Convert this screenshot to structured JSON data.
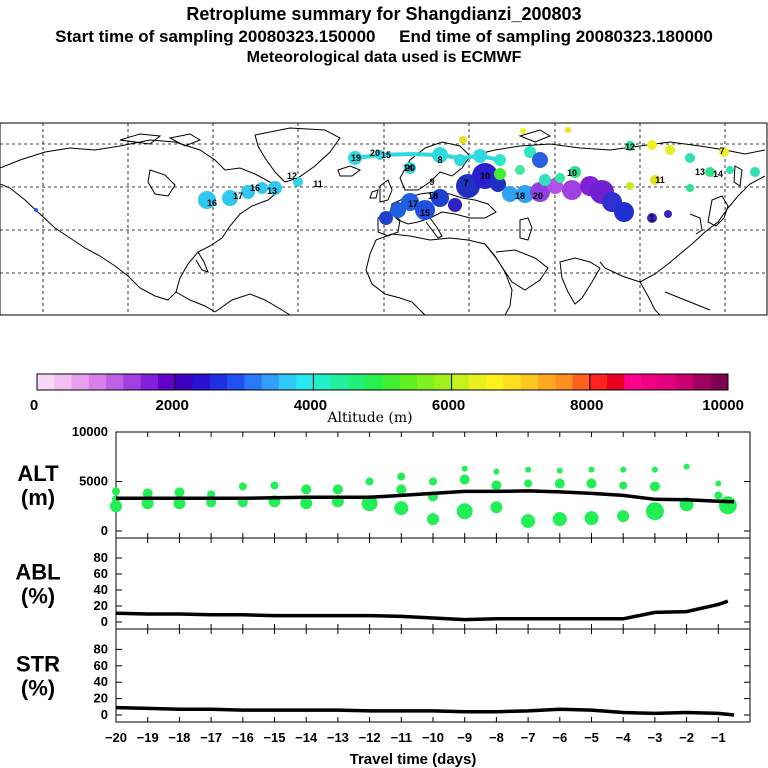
{
  "header": {
    "line1": "Retroplume summary for Shangdianzi_200803",
    "line2": "Start time of sampling 20080323.150000     End time of sampling 20080323.180000",
    "line3": "Meteorological data used is ECMWF"
  },
  "colors": {
    "alt_dots": "#22ee55",
    "line": "#000000",
    "colorbar": [
      "#f7d9f7",
      "#f0c0f0",
      "#e6a0ee",
      "#d880ea",
      "#c060e6",
      "#a040e0",
      "#8020d8",
      "#6000c8",
      "#4000c0",
      "#2a10d0",
      "#2030e0",
      "#2050f0",
      "#2878f8",
      "#30a0f8",
      "#30c8f8",
      "#28e8f0",
      "#20f0c8",
      "#20f0a0",
      "#20f078",
      "#28f050",
      "#40f030",
      "#60f020",
      "#80f020",
      "#a0f020",
      "#c8f020",
      "#e8f020",
      "#fff020",
      "#ffe020",
      "#ffc820",
      "#ffa820",
      "#ff9020",
      "#ff6020",
      "#ff2020",
      "#e80020",
      "#ff0090",
      "#f00080",
      "#e00080",
      "#c80070",
      "#a00060",
      "#800050"
    ]
  },
  "colorbar": {
    "ticks": [
      "0",
      "2000",
      "4000",
      "6000",
      "8000",
      "10000"
    ],
    "label": "Altitude (m)"
  },
  "map": {
    "label_values": [
      {
        "text": "16",
        "color": "#28c8f0"
      },
      {
        "text": "17",
        "color": "#28c8f0"
      },
      {
        "text": "16",
        "color": "#28c8f0"
      },
      {
        "text": "13",
        "color": "#28d8e0"
      },
      {
        "text": "12",
        "color": "#28e0d0"
      },
      {
        "text": "11",
        "color": "#28e0d0"
      },
      {
        "text": "19",
        "color": "#28d8e0"
      },
      {
        "text": "20",
        "color": "#28d8e0"
      },
      {
        "text": "14",
        "color": "#28d8e0"
      },
      {
        "text": "18",
        "color": "#2890f0"
      },
      {
        "text": "17",
        "color": "#2060e0"
      },
      {
        "text": "15",
        "color": "#2060e0"
      },
      {
        "text": "10",
        "color": "#30e090"
      },
      {
        "text": "18",
        "color": "#30a0f0"
      },
      {
        "text": "20",
        "color": "#9040e0"
      },
      {
        "text": "9",
        "color": "#c0e030"
      },
      {
        "text": "7",
        "color": "#f0f020"
      },
      {
        "text": "8",
        "color": "#f0e020"
      },
      {
        "text": "11",
        "color": "#e0e020"
      },
      {
        "text": "12",
        "color": "#30e090"
      },
      {
        "text": "7",
        "color": "#f0f020"
      },
      {
        "text": "20",
        "color": "#30e0b0"
      },
      {
        "text": "10",
        "color": "#30e090"
      },
      {
        "text": "13",
        "color": "#30e090"
      },
      {
        "text": "14",
        "color": "#30e090"
      },
      {
        "text": "15",
        "color": "#30e0b0"
      },
      {
        "text": "1",
        "color": "#4020c0"
      }
    ]
  },
  "chart_data": [
    {
      "type": "scatter",
      "name": "ALT",
      "ylabel": "ALT\n(m)",
      "ylabel_lines": [
        "ALT",
        "(m)"
      ],
      "xlim": [
        -20,
        0
      ],
      "ylim": [
        0,
        10000
      ],
      "yticks": [
        "10000",
        "5000",
        "0"
      ],
      "ytick_values": [
        10000,
        5000,
        0
      ],
      "line": {
        "x": [
          -20,
          -19,
          -18,
          -17,
          -16,
          -15,
          -14,
          -13,
          -12,
          -11,
          -10,
          -9,
          -8,
          -7,
          -6,
          -5,
          -4,
          -3,
          -2,
          -1,
          -0.5
        ],
        "y": [
          3300,
          3300,
          3300,
          3300,
          3300,
          3350,
          3400,
          3400,
          3400,
          3600,
          3800,
          4000,
          4000,
          4050,
          3950,
          3800,
          3600,
          3200,
          3150,
          3000,
          2950
        ]
      },
      "dots": {
        "x": [
          -20,
          -20,
          -20,
          -19,
          -19,
          -18,
          -18,
          -17,
          -17,
          -16,
          -16,
          -15,
          -15,
          -14,
          -14,
          -13,
          -13,
          -12,
          -12,
          -11,
          -11,
          -11,
          -10,
          -10,
          -10,
          -9,
          -9,
          -9,
          -8,
          -8,
          -8,
          -7,
          -7,
          -7,
          -6,
          -6,
          -6,
          -5,
          -5,
          -5,
          -4,
          -4,
          -4,
          -3,
          -3,
          -3,
          -2,
          -2,
          -1,
          -1,
          -0.7
        ],
        "y": [
          4000,
          3200,
          2500,
          3800,
          2800,
          3900,
          2800,
          3700,
          2900,
          4500,
          2900,
          4600,
          3000,
          4200,
          2800,
          4200,
          3000,
          5000,
          2800,
          5500,
          4200,
          2300,
          5000,
          3500,
          1200,
          6300,
          5200,
          2000,
          6000,
          4600,
          2400,
          6200,
          4800,
          1000,
          6100,
          4800,
          1200,
          6200,
          4800,
          1300,
          6200,
          4600,
          1500,
          6200,
          4500,
          2000,
          6500,
          2700,
          4800,
          3600,
          2600
        ],
        "size": [
          4,
          4,
          6,
          5,
          6,
          5,
          6,
          4,
          5,
          4,
          5,
          4,
          6,
          5,
          6,
          5,
          6,
          4,
          8,
          4,
          5,
          7,
          4,
          5,
          6,
          3,
          5,
          8,
          3,
          5,
          6,
          3,
          4,
          7,
          3,
          5,
          7,
          3,
          5,
          7,
          3,
          4,
          6,
          3,
          5,
          9,
          3,
          7,
          3,
          4,
          9
        ]
      }
    },
    {
      "type": "line",
      "name": "ABL",
      "ylabel": "ABL\n(%)",
      "ylabel_lines": [
        "ABL",
        "(%)"
      ],
      "xlim": [
        -20,
        0
      ],
      "ylim": [
        0,
        100
      ],
      "yticks": [
        "80",
        "60",
        "40",
        "20",
        "0"
      ],
      "ytick_values": [
        80,
        60,
        40,
        20,
        0
      ],
      "x": [
        -20,
        -19,
        -18,
        -17,
        -16,
        -15,
        -14,
        -13,
        -12,
        -11,
        -10,
        -9,
        -8,
        -7,
        -6,
        -5,
        -4,
        -3,
        -2,
        -1,
        -0.7
      ],
      "y": [
        11,
        10,
        10,
        9,
        9,
        8,
        8,
        8,
        8,
        7,
        5,
        3,
        4,
        4,
        4,
        4,
        4,
        12,
        13,
        22,
        26
      ]
    },
    {
      "type": "line",
      "name": "STR",
      "ylabel": "STR\n(%)",
      "ylabel_lines": [
        "STR",
        "(%)"
      ],
      "xlim": [
        -20,
        0
      ],
      "ylim": [
        0,
        100
      ],
      "yticks": [
        "80",
        "60",
        "40",
        "20",
        "0"
      ],
      "ytick_values": [
        80,
        60,
        40,
        20,
        0
      ],
      "x": [
        -20,
        -19,
        -18,
        -17,
        -16,
        -15,
        -14,
        -13,
        -12,
        -11,
        -10,
        -9,
        -8,
        -7,
        -6,
        -5,
        -4,
        -3,
        -2,
        -1,
        -0.5
      ],
      "y": [
        9,
        8,
        7,
        7,
        6,
        6,
        6,
        6,
        5,
        5,
        5,
        4,
        4,
        5,
        7,
        6,
        3,
        2,
        3,
        2,
        0
      ],
      "xlabel": "Travel time (days)",
      "xticks": [
        "−20",
        "−19",
        "−18",
        "−17",
        "−16",
        "−15",
        "−14",
        "−13",
        "−12",
        "−11",
        "−10",
        "−9",
        "−8",
        "−7",
        "−6",
        "−5",
        "−4",
        "−3",
        "−2",
        "−1"
      ],
      "xtick_values": [
        -20,
        -19,
        -18,
        -17,
        -16,
        -15,
        -14,
        -13,
        -12,
        -11,
        -10,
        -9,
        -8,
        -7,
        -6,
        -5,
        -4,
        -3,
        -2,
        -1
      ]
    }
  ]
}
